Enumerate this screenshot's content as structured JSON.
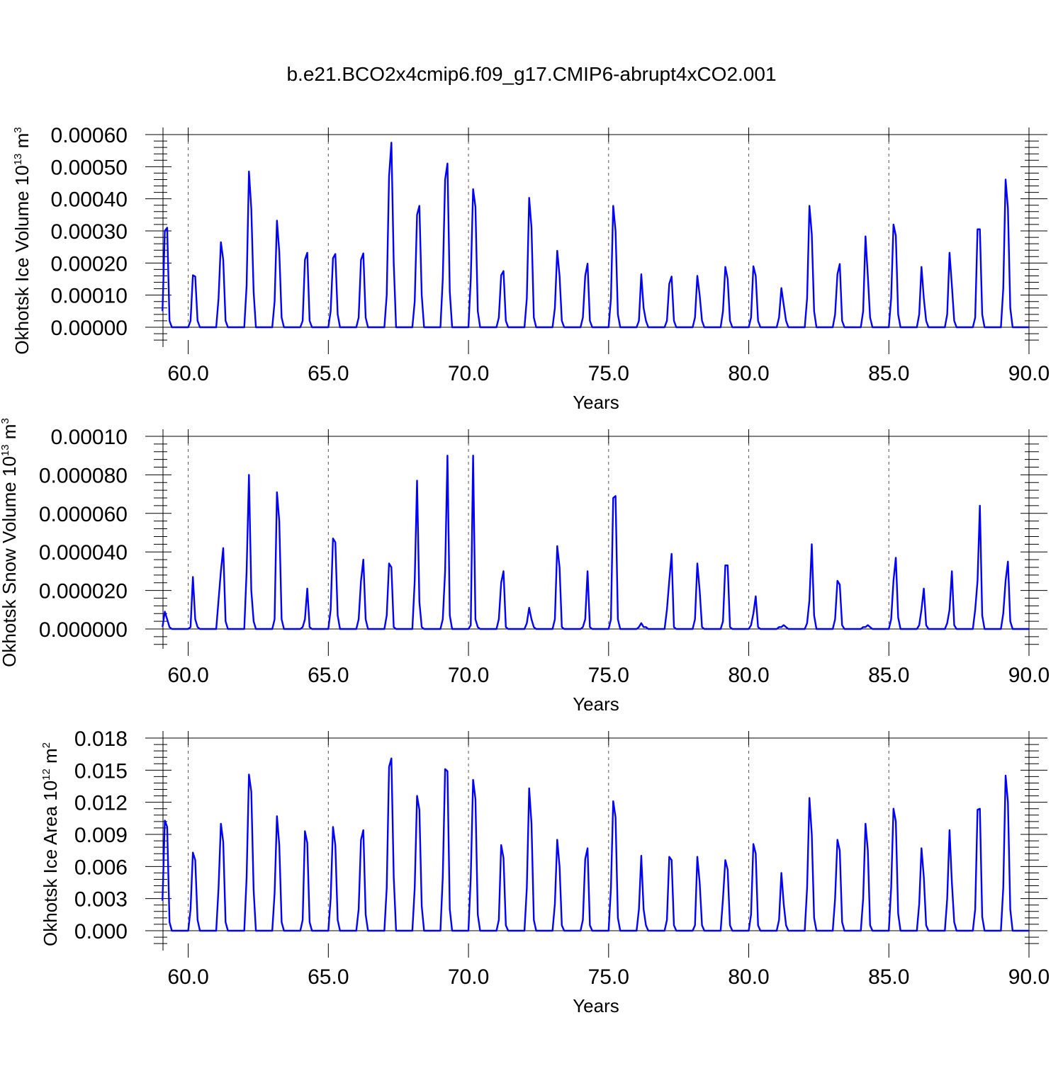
{
  "title": "b.e21.BCO2x4cmip6.f09_g17.CMIP6-abrupt4xCO2.001",
  "colors": {
    "series": "#0000ff",
    "axis": "#000000",
    "grid": "#555555"
  },
  "chart_data": [
    {
      "type": "line",
      "name": "ice-volume",
      "ylabel": {
        "base": "Okhotsk Ice Volume 10",
        "exp": "13",
        "unit": " m",
        "unit_exp": "3"
      },
      "xlabel": "Years",
      "xlim": [
        59.1,
        90.0
      ],
      "ylim": [
        -6e-05,
        0.0006
      ],
      "xticks": [
        60.0,
        65.0,
        70.0,
        75.0,
        80.0,
        85.0,
        90.0
      ],
      "xtick_labels": [
        "60.0",
        "65.0",
        "70.0",
        "75.0",
        "80.0",
        "85.0",
        "90.0"
      ],
      "yticks": [
        0.0,
        0.0001,
        0.0002,
        0.0003,
        0.0004,
        0.0005,
        0.0006
      ],
      "ytick_labels": [
        "0.00000",
        "0.00010",
        "0.00020",
        "0.00030",
        "0.00040",
        "0.00050",
        "0.00060"
      ],
      "grid": "dashed vertical at major x ticks",
      "series": [
        {
          "name": "Okhotsk Ice Volume",
          "start": 59.083,
          "step": 0.08333,
          "peaks": [
            [
              0.0003,
              0.00031
            ],
            [
              0.000162,
              0.000158
            ],
            [
              0.000265,
              0.00021
            ],
            [
              0.000485,
              0.00037
            ],
            [
              0.000332,
              0.000235
            ],
            [
              0.00021,
              0.000232
            ],
            [
              0.000215,
              0.000228
            ],
            [
              0.00021,
              0.00023
            ],
            [
              0.00047,
              0.000575
            ],
            [
              0.00035,
              0.000378
            ],
            [
              0.00046,
              0.00051
            ],
            [
              0.00043,
              0.000375
            ],
            [
              0.000162,
              0.000175
            ],
            [
              0.000403,
              0.00031
            ],
            [
              0.000238,
              0.00016
            ],
            [
              0.00016,
              0.000198
            ],
            [
              0.000378,
              0.0003
            ],
            [
              0.000165,
              6e-05
            ],
            [
              0.000135,
              0.000158
            ],
            [
              0.00016,
              0.0001
            ],
            [
              0.000188,
              0.00015
            ],
            [
              0.00019,
              0.00016
            ],
            [
              0.000122,
              7e-05
            ],
            [
              0.000378,
              0.00029
            ],
            [
              0.000165,
              0.000197
            ],
            [
              0.000283,
              0.00016
            ],
            [
              0.00032,
              0.000285
            ],
            [
              0.000188,
              9e-05
            ],
            [
              0.000232,
              0.00013
            ],
            [
              0.000305,
              0.000305
            ],
            [
              0.00046,
              0.00037
            ]
          ],
          "shoulders": [
            [
              5e-05,
              2e-05
            ],
            [
              2e-05,
              2e-05
            ],
            [
              9e-05,
              2e-05
            ],
            [
              0.00013,
              0.00011
            ],
            [
              8e-05,
              3e-05
            ],
            [
              2e-05,
              2e-05
            ],
            [
              5e-05,
              4e-05
            ],
            [
              3e-05,
              3e-05
            ],
            [
              0.0001,
              0.0002
            ],
            [
              8e-05,
              0.0001
            ],
            [
              0.00015,
              0.00011
            ],
            [
              0.00015,
              5e-05
            ],
            [
              3e-05,
              2e-05
            ],
            [
              9e-05,
              3e-05
            ],
            [
              6e-05,
              2e-05
            ],
            [
              3e-05,
              2e-05
            ],
            [
              9e-05,
              4e-05
            ],
            [
              2e-05,
              2e-05
            ],
            [
              2e-05,
              2e-05
            ],
            [
              3e-05,
              2e-05
            ],
            [
              5e-05,
              2e-05
            ],
            [
              3e-05,
              2e-05
            ],
            [
              3e-05,
              2e-05
            ],
            [
              9e-05,
              5e-05
            ],
            [
              4e-05,
              2e-05
            ],
            [
              5e-05,
              3e-05
            ],
            [
              9e-05,
              4e-05
            ],
            [
              4e-05,
              2e-05
            ],
            [
              4e-05,
              2e-05
            ],
            [
              3e-05,
              4e-05
            ],
            [
              0.00012,
              6e-05
            ]
          ]
        }
      ]
    },
    {
      "type": "line",
      "name": "snow-volume",
      "ylabel": {
        "base": "Okhotsk Snow Volume 10",
        "exp": "13",
        "unit": " m",
        "unit_exp": "3"
      },
      "xlabel": "Years",
      "xlim": [
        59.1,
        90.0
      ],
      "ylim": [
        -1e-05,
        0.0001
      ],
      "xticks": [
        60.0,
        65.0,
        70.0,
        75.0,
        80.0,
        85.0,
        90.0
      ],
      "xtick_labels": [
        "60.0",
        "65.0",
        "70.0",
        "75.0",
        "80.0",
        "85.0",
        "90.0"
      ],
      "yticks": [
        0.0,
        2e-05,
        4e-05,
        6e-05,
        8e-05,
        0.0001
      ],
      "ytick_labels": [
        "0.000000",
        "0.000020",
        "0.000040",
        "0.000060",
        "0.000080",
        "0.00010"
      ],
      "grid": "dashed vertical at major x ticks",
      "series": [
        {
          "name": "Okhotsk Snow Volume",
          "start": 59.083,
          "step": 0.08333,
          "peaks": [
            [
              9e-06,
              5e-06
            ],
            [
              2.7e-05,
              5e-06
            ],
            [
              3e-05,
              4.2e-05
            ],
            [
              8e-05,
              2e-05
            ],
            [
              7.1e-05,
              5.6e-05
            ],
            [
              5e-06,
              2.1e-05
            ],
            [
              4.7e-05,
              4.5e-05
            ],
            [
              2.5e-05,
              3.6e-05
            ],
            [
              3.4e-05,
              3.2e-05
            ],
            [
              7.7e-05,
              1.4e-05
            ],
            [
              3e-05,
              9e-05
            ],
            [
              9e-05,
              5e-06
            ],
            [
              2.4e-05,
              3e-05
            ],
            [
              1.1e-05,
              5e-06
            ],
            [
              4.3e-05,
              3.2e-05
            ],
            [
              5e-06,
              3e-05
            ],
            [
              6.8e-05,
              6.9e-05
            ],
            [
              3e-06,
              1e-06
            ],
            [
              2.5e-05,
              3.9e-05
            ],
            [
              3.4e-05,
              2e-05
            ],
            [
              3.3e-05,
              3.3e-05
            ],
            [
              8e-06,
              1.7e-05
            ],
            [
              1e-06,
              2e-06
            ],
            [
              1.5e-05,
              4.4e-05
            ],
            [
              2.5e-05,
              2.3e-05
            ],
            [
              1e-06,
              2e-06
            ],
            [
              2.5e-05,
              3.7e-05
            ],
            [
              1e-05,
              2.1e-05
            ],
            [
              1e-05,
              3e-05
            ],
            [
              2.5e-05,
              6.4e-05
            ],
            [
              2.5e-05,
              3.5e-05
            ]
          ],
          "shoulders": [
            [
              1e-06,
              1e-06
            ],
            [
              1e-06,
              1e-06
            ],
            [
              1.5e-05,
              4e-06
            ],
            [
              3e-05,
              4e-06
            ],
            [
              5e-06,
              5e-06
            ],
            [
              1e-06,
              1e-06
            ],
            [
              1e-05,
              7e-06
            ],
            [
              5e-06,
              5e-06
            ],
            [
              7e-06,
              1e-06
            ],
            [
              2.5e-05,
              1e-06
            ],
            [
              5e-06,
              7e-06
            ],
            [
              2e-06,
              1e-06
            ],
            [
              5e-06,
              1e-06
            ],
            [
              3e-06,
              1e-06
            ],
            [
              5e-06,
              1e-06
            ],
            [
              1e-06,
              1e-06
            ],
            [
              5e-06,
              5e-06
            ],
            [
              1e-06,
              1e-06
            ],
            [
              1e-05,
              1e-06
            ],
            [
              5e-06,
              1e-06
            ],
            [
              4e-06,
              1e-06
            ],
            [
              2e-06,
              1e-06
            ],
            [
              1e-06,
              1e-06
            ],
            [
              3e-06,
              7e-06
            ],
            [
              5e-06,
              2e-06
            ],
            [
              1e-06,
              1e-06
            ],
            [
              5e-06,
              6e-06
            ],
            [
              2e-06,
              2e-06
            ],
            [
              3e-06,
              2e-06
            ],
            [
              1e-05,
              7e-06
            ],
            [
              8e-06,
              4e-06
            ]
          ]
        }
      ]
    },
    {
      "type": "line",
      "name": "ice-area",
      "ylabel": {
        "base": "Okhotsk Ice Area 10",
        "exp": "12",
        "unit": " m",
        "unit_exp": "2"
      },
      "xlabel": "Years",
      "xlim": [
        59.1,
        90.0
      ],
      "ylim": [
        -0.0018,
        0.018
      ],
      "xticks": [
        60.0,
        65.0,
        70.0,
        75.0,
        80.0,
        85.0,
        90.0
      ],
      "xtick_labels": [
        "60.0",
        "65.0",
        "70.0",
        "75.0",
        "80.0",
        "85.0",
        "90.0"
      ],
      "yticks": [
        0.0,
        0.003,
        0.006,
        0.009,
        0.012,
        0.015,
        0.018
      ],
      "ytick_labels": [
        "0.000",
        "0.003",
        "0.006",
        "0.009",
        "0.012",
        "0.015",
        "0.018"
      ],
      "grid": "dashed vertical at major x ticks",
      "series": [
        {
          "name": "Okhotsk Ice Area",
          "start": 59.083,
          "step": 0.08333,
          "peaks": [
            [
              0.0103,
              0.0097
            ],
            [
              0.0073,
              0.0066
            ],
            [
              0.01,
              0.0083
            ],
            [
              0.0146,
              0.013
            ],
            [
              0.0107,
              0.008
            ],
            [
              0.0093,
              0.0082
            ],
            [
              0.0097,
              0.008
            ],
            [
              0.0085,
              0.0094
            ],
            [
              0.0153,
              0.0161
            ],
            [
              0.0126,
              0.0113
            ],
            [
              0.0151,
              0.0149
            ],
            [
              0.0141,
              0.0123
            ],
            [
              0.008,
              0.0068
            ],
            [
              0.0133,
              0.01
            ],
            [
              0.0085,
              0.006
            ],
            [
              0.0067,
              0.0077
            ],
            [
              0.0121,
              0.0106
            ],
            [
              0.007,
              0.002
            ],
            [
              0.0069,
              0.0066
            ],
            [
              0.0069,
              0.0045
            ],
            [
              0.0066,
              0.0057
            ],
            [
              0.0081,
              0.0072
            ],
            [
              0.0054,
              0.0025
            ],
            [
              0.0124,
              0.009
            ],
            [
              0.0085,
              0.0075
            ],
            [
              0.01,
              0.0075
            ],
            [
              0.0114,
              0.0102
            ],
            [
              0.0077,
              0.005
            ],
            [
              0.0094,
              0.0045
            ],
            [
              0.0113,
              0.0114
            ],
            [
              0.0145,
              0.012
            ]
          ],
          "shoulders": [
            [
              0.0028,
              0.0008
            ],
            [
              0.002,
              0.001
            ],
            [
              0.004,
              0.0008
            ],
            [
              0.005,
              0.0038
            ],
            [
              0.0035,
              0.0008
            ],
            [
              0.001,
              0.0008
            ],
            [
              0.003,
              0.001
            ],
            [
              0.002,
              0.0015
            ],
            [
              0.004,
              0.005
            ],
            [
              0.004,
              0.0023
            ],
            [
              0.005,
              0.002
            ],
            [
              0.005,
              0.0015
            ],
            [
              0.001,
              0.0005
            ],
            [
              0.004,
              0.001
            ],
            [
              0.0025,
              0.0005
            ],
            [
              0.001,
              0.0005
            ],
            [
              0.004,
              0.0012
            ],
            [
              0.002,
              0.0005
            ],
            [
              0.001,
              0.0005
            ],
            [
              0.0005,
              0.0005
            ],
            [
              0.003,
              0.0005
            ],
            [
              0.0015,
              0.0005
            ],
            [
              0.001,
              0.0005
            ],
            [
              0.004,
              0.0012
            ],
            [
              0.003,
              0.0008
            ],
            [
              0.003,
              0.0005
            ],
            [
              0.004,
              0.0016
            ],
            [
              0.0025,
              0.0005
            ],
            [
              0.003,
              0.0008
            ],
            [
              0.002,
              0.0013
            ],
            [
              0.004,
              0.002
            ]
          ]
        }
      ]
    }
  ]
}
